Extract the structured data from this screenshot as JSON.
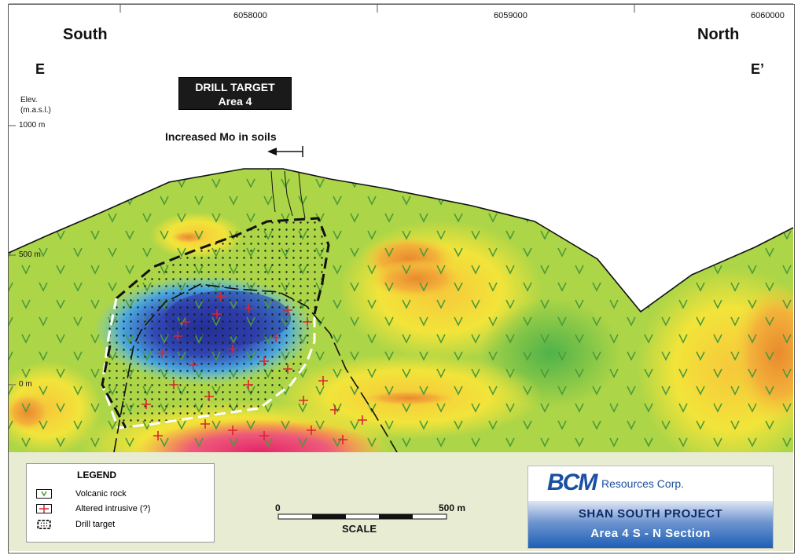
{
  "header": {
    "coords": [
      "6058000",
      "6059000",
      "6060000"
    ],
    "left_label": "South",
    "right_label": "North",
    "left_mark": "E",
    "right_mark": "E’"
  },
  "elevation": {
    "title_line1": "Elev.",
    "title_line2": "(m.a.s.l.)",
    "ticks": [
      "1000 m",
      "500 m",
      "0 m"
    ]
  },
  "drill_target": {
    "line1": "DRILL TARGET",
    "line2": "Area 4"
  },
  "annotation": {
    "mo_soils": "Increased Mo in soils"
  },
  "legend": {
    "title": "LEGEND",
    "items": [
      {
        "label": "Volcanic rock",
        "icon": "volcanic-rock-symbol"
      },
      {
        "label": "Altered intrusive (?)",
        "icon": "red-cross-symbol"
      },
      {
        "label": "Drill target",
        "icon": "dashed-box-symbol"
      }
    ]
  },
  "scale": {
    "start": "0",
    "end": "500 m",
    "title": "SCALE"
  },
  "logo": {
    "mark": "BCM",
    "company": "Resources Corp.",
    "project": "SHAN SOUTH PROJECT",
    "section": "Area 4  S - N Section"
  },
  "colors": {
    "volcanic_green": "#8cc63f",
    "anomaly_blue": "#2e3fa8",
    "intrusive_red": "#e8425a",
    "warm_yellow": "#f2e43a",
    "panel_bg": "#e8ecd3"
  }
}
